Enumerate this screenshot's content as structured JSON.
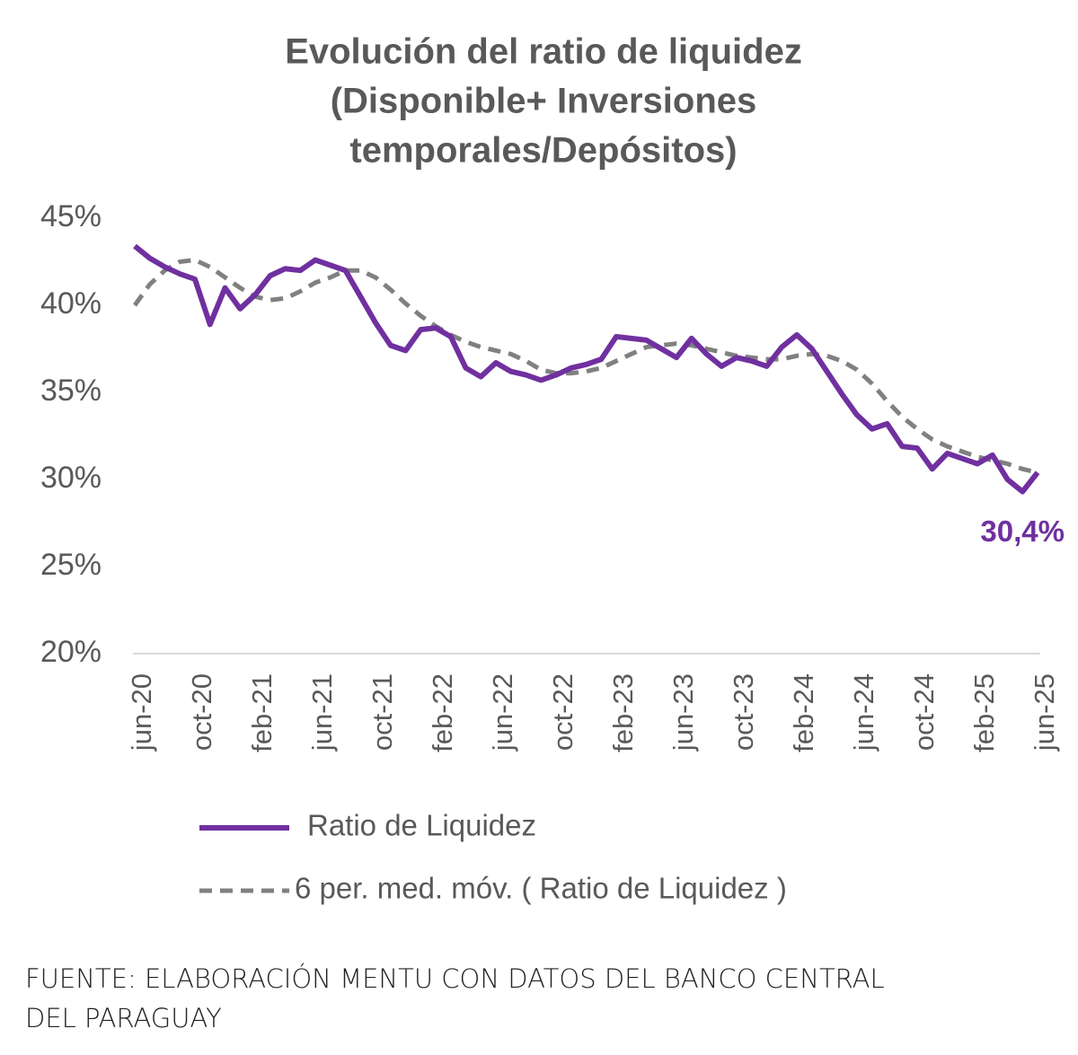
{
  "chart_data": {
    "type": "line",
    "title": [
      "Evolución del ratio de liquidez",
      "(Disponible+ Inversiones",
      "temporales/Depósitos)"
    ],
    "categories": [
      "jun-20",
      null,
      null,
      null,
      "oct-20",
      null,
      null,
      null,
      "feb-21",
      null,
      null,
      null,
      "jun-21",
      null,
      null,
      null,
      "oct-21",
      null,
      null,
      null,
      "feb-22",
      null,
      null,
      null,
      "jun-22",
      null,
      null,
      null,
      "oct-22",
      null,
      null,
      null,
      "feb-23",
      null,
      null,
      null,
      "jun-23",
      null,
      null,
      null,
      "oct-23",
      null,
      null,
      null,
      "feb-24",
      null,
      null,
      null,
      "jun-24",
      null,
      null,
      null,
      "oct-24",
      null,
      null,
      null,
      "feb-25",
      null,
      null,
      null,
      "jun-25"
    ],
    "series": [
      {
        "name": "Ratio de Liquidez",
        "color": "#7030a0",
        "style": "solid",
        "values": [
          43.4,
          42.7,
          42.2,
          41.8,
          41.5,
          38.9,
          41.0,
          39.8,
          40.6,
          41.7,
          42.1,
          42.0,
          42.6,
          42.3,
          42.0,
          40.5,
          39.0,
          37.7,
          37.4,
          38.6,
          38.7,
          38.2,
          36.4,
          35.9,
          36.7,
          36.2,
          36.0,
          35.7,
          36.0,
          36.4,
          36.6,
          36.9,
          38.2,
          38.1,
          38.0,
          37.5,
          37.0,
          38.1,
          37.2,
          36.5,
          37.0,
          36.8,
          36.5,
          37.6,
          38.3,
          37.5,
          36.2,
          34.9,
          33.7,
          32.9,
          33.2,
          31.9,
          31.8,
          30.6,
          31.5,
          31.2,
          30.9,
          31.4,
          30.0,
          29.3,
          30.4
        ],
        "value_labels": [
          null,
          null,
          null,
          null,
          null,
          null,
          null,
          null,
          null,
          null,
          null,
          null,
          null,
          null,
          null,
          null,
          null,
          null,
          null,
          null,
          null,
          null,
          null,
          null,
          null,
          null,
          null,
          null,
          null,
          null,
          null,
          null,
          null,
          null,
          null,
          null,
          null,
          null,
          null,
          null,
          null,
          null,
          null,
          null,
          null,
          null,
          null,
          null,
          null,
          null,
          null,
          null,
          null,
          null,
          null,
          null,
          null,
          null,
          null,
          null,
          "30,4%"
        ]
      },
      {
        "name": "6 per. med. móv. ( Ratio de Liquidez )",
        "color": "#808080",
        "style": "dashed",
        "values": [
          40.0,
          41.2,
          42.0,
          42.5,
          42.6,
          42.2,
          41.6,
          41.0,
          40.5,
          40.3,
          40.4,
          40.8,
          41.3,
          41.6,
          42.0,
          42.0,
          41.6,
          40.9,
          40.1,
          39.4,
          38.8,
          38.3,
          37.9,
          37.6,
          37.4,
          37.2,
          36.8,
          36.3,
          36.1,
          36.1,
          36.2,
          36.4,
          36.8,
          37.2,
          37.6,
          37.7,
          37.8,
          37.7,
          37.5,
          37.3,
          37.1,
          37.0,
          36.9,
          36.9,
          37.1,
          37.2,
          37.1,
          36.8,
          36.3,
          35.5,
          34.5,
          33.6,
          32.9,
          32.3,
          31.9,
          31.6,
          31.3,
          31.1,
          30.9,
          30.6,
          30.4
        ]
      }
    ],
    "ylim": [
      20,
      45
    ],
    "yticks": [
      {
        "value": 20,
        "label": "20%"
      },
      {
        "value": 25,
        "label": "25%"
      },
      {
        "value": 30,
        "label": "30%"
      },
      {
        "value": 35,
        "label": "35%"
      },
      {
        "value": 40,
        "label": "40%"
      },
      {
        "value": 45,
        "label": "45%"
      }
    ],
    "grid": false,
    "source": [
      "FUENTE: ELABORACIÓN MENTU CON DATOS DEL BANCO CENTRAL",
      "DEL PARAGUAY"
    ]
  }
}
